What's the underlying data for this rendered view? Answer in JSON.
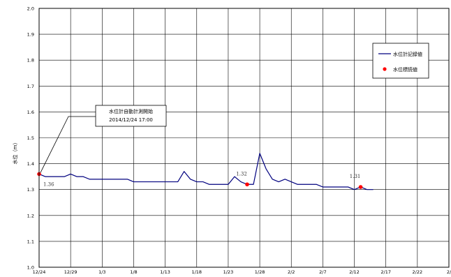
{
  "chart_data": {
    "type": "line",
    "title": "",
    "xlabel": "",
    "ylabel": "水位（ｍ）",
    "ylim": [
      1.0,
      2.0
    ],
    "xlim": [
      "2014-12-24",
      "2015-02-27"
    ],
    "grid": true,
    "legend_position": "top-right",
    "y_ticks": [
      "1.0",
      "1.1",
      "1.2",
      "1.3",
      "1.4",
      "1.5",
      "1.6",
      "1.7",
      "1.8",
      "1.9",
      "2.0"
    ],
    "x_ticks": [
      {
        "label": "12/24",
        "date": "2014-12-24"
      },
      {
        "label": "12/29",
        "date": "2014-12-29"
      },
      {
        "label": "1/3",
        "date": "2015-01-03"
      },
      {
        "label": "1/8",
        "date": "2015-01-08"
      },
      {
        "label": "1/13",
        "date": "2015-01-13"
      },
      {
        "label": "1/18",
        "date": "2015-01-18"
      },
      {
        "label": "1/23",
        "date": "2015-01-23"
      },
      {
        "label": "1/28",
        "date": "2015-01-28"
      },
      {
        "label": "2/2",
        "date": "2015-02-02"
      },
      {
        "label": "2/7",
        "date": "2015-02-07"
      },
      {
        "label": "2/12",
        "date": "2015-02-12"
      },
      {
        "label": "2/17",
        "date": "2015-02-17"
      },
      {
        "label": "2/22",
        "date": "2015-02-22"
      },
      {
        "label": "2/",
        "date": "2015-02-27"
      }
    ],
    "series": [
      {
        "name": "水位計記録値",
        "kind": "line",
        "color": "#00007f",
        "x": [
          "2014-12-24",
          "2014-12-25",
          "2014-12-26",
          "2014-12-27",
          "2014-12-28",
          "2014-12-29",
          "2014-12-30",
          "2014-12-31",
          "2015-01-01",
          "2015-01-02",
          "2015-01-03",
          "2015-01-04",
          "2015-01-05",
          "2015-01-06",
          "2015-01-07",
          "2015-01-08",
          "2015-01-09",
          "2015-01-10",
          "2015-01-11",
          "2015-01-12",
          "2015-01-13",
          "2015-01-14",
          "2015-01-15",
          "2015-01-16",
          "2015-01-17",
          "2015-01-18",
          "2015-01-19",
          "2015-01-20",
          "2015-01-21",
          "2015-01-22",
          "2015-01-23",
          "2015-01-24",
          "2015-01-25",
          "2015-01-26",
          "2015-01-27",
          "2015-01-28",
          "2015-01-29",
          "2015-01-30",
          "2015-01-31",
          "2015-02-01",
          "2015-02-02",
          "2015-02-03",
          "2015-02-04",
          "2015-02-05",
          "2015-02-06",
          "2015-02-07",
          "2015-02-08",
          "2015-02-09",
          "2015-02-10",
          "2015-02-11",
          "2015-02-12",
          "2015-02-13",
          "2015-02-14",
          "2015-02-15"
        ],
        "values": [
          1.36,
          1.35,
          1.35,
          1.35,
          1.35,
          1.36,
          1.35,
          1.35,
          1.34,
          1.34,
          1.34,
          1.34,
          1.34,
          1.34,
          1.34,
          1.33,
          1.33,
          1.33,
          1.33,
          1.33,
          1.33,
          1.33,
          1.33,
          1.37,
          1.34,
          1.33,
          1.33,
          1.32,
          1.32,
          1.32,
          1.32,
          1.35,
          1.33,
          1.32,
          1.32,
          1.44,
          1.38,
          1.34,
          1.33,
          1.34,
          1.33,
          1.32,
          1.32,
          1.32,
          1.32,
          1.31,
          1.31,
          1.31,
          1.31,
          1.31,
          1.3,
          1.31,
          1.3,
          1.3
        ]
      },
      {
        "name": "水位標読値",
        "kind": "scatter",
        "color": "#ff0000",
        "x": [
          "2014-12-24",
          "2015-01-26",
          "2015-02-13"
        ],
        "values": [
          1.36,
          1.32,
          1.31
        ],
        "labels": [
          "1.36",
          "1.32",
          "1.31"
        ]
      }
    ],
    "annotation": {
      "line1": "水位計自動計測開始",
      "line2": "2014/12/24 17:00"
    }
  }
}
